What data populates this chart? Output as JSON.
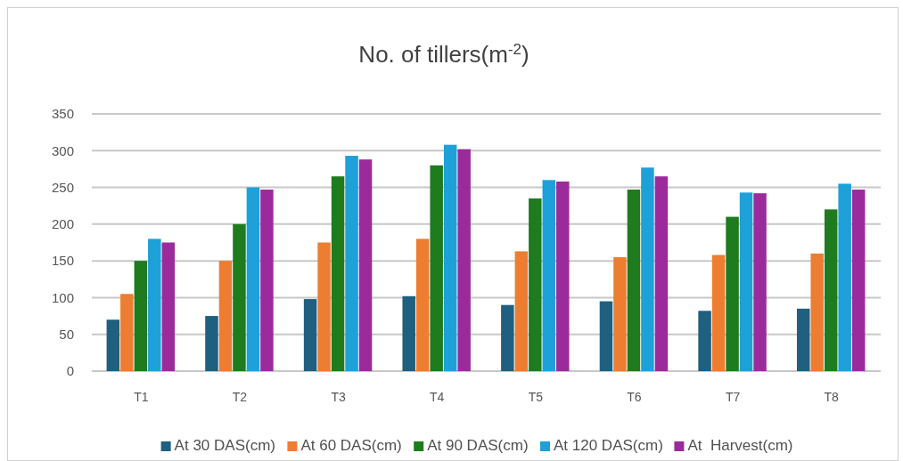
{
  "chart_data": {
    "type": "bar",
    "title": "No. of tillers(m$^{-2}$)",
    "categories": [
      "T1",
      "T2",
      "T3",
      "T4",
      "T5",
      "T6",
      "T7",
      "T8"
    ],
    "series": [
      {
        "name": "At 30 DAS(cm)",
        "color": "#1f5f7f",
        "values": [
          70,
          75,
          98,
          102,
          90,
          95,
          82,
          85
        ]
      },
      {
        "name": "At 60 DAS(cm)",
        "color": "#ed7d31",
        "values": [
          105,
          150,
          175,
          180,
          163,
          155,
          158,
          160
        ]
      },
      {
        "name": "At 90 DAS(cm)",
        "color": "#1e7b1e",
        "values": [
          150,
          200,
          265,
          280,
          235,
          247,
          210,
          220
        ]
      },
      {
        "name": "At 120 DAS(cm)",
        "color": "#1ea0d8",
        "values": [
          180,
          250,
          293,
          308,
          260,
          277,
          243,
          255
        ]
      },
      {
        "name": "At  Harvest(cm)",
        "color": "#9b2b9b",
        "values": [
          175,
          247,
          288,
          302,
          258,
          265,
          242,
          247
        ]
      }
    ],
    "ylim": [
      0,
      350
    ],
    "yticks": [
      0,
      50,
      100,
      150,
      200,
      250,
      300,
      350
    ],
    "grid": "y",
    "legend": "bottom"
  }
}
